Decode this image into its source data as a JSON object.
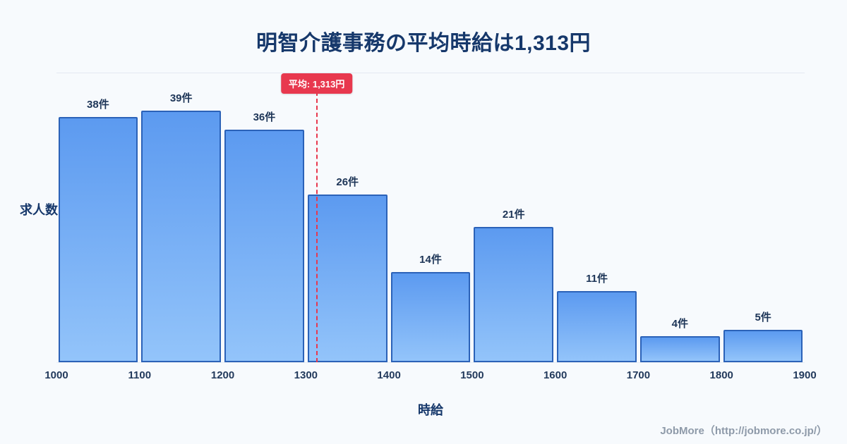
{
  "title": "明智介護事務の平均時給は1,313円",
  "chart_data": {
    "type": "bar",
    "title": "明智介護事務の平均時給は1,313円",
    "xlabel": "時給",
    "ylabel": "求人数",
    "bin_edges": [
      1000,
      1100,
      1200,
      1300,
      1400,
      1500,
      1600,
      1700,
      1800,
      1900
    ],
    "categories": [
      "1000-1100",
      "1100-1200",
      "1200-1300",
      "1300-1400",
      "1400-1500",
      "1500-1600",
      "1600-1700",
      "1700-1800",
      "1800-1900"
    ],
    "values": [
      38,
      39,
      36,
      26,
      14,
      21,
      11,
      4,
      5
    ],
    "value_labels": [
      "38件",
      "39件",
      "36件",
      "26件",
      "14件",
      "21件",
      "11件",
      "4件",
      "5件"
    ],
    "x_ticks": [
      "1000",
      "1100",
      "1200",
      "1300",
      "1400",
      "1500",
      "1600",
      "1700",
      "1800",
      "1900"
    ],
    "ylim": [
      0,
      45
    ],
    "grid": "top-line-only",
    "legend": "none",
    "average_marker": {
      "value": 1313,
      "label": "平均: 1,313円",
      "style": "dashed-vertical-line"
    }
  },
  "footer": {
    "credit": "JobMore（http://jobmore.co.jp/）"
  },
  "colors": {
    "background": "#f7fafd",
    "title_text": "#16386b",
    "bar_gradient_top": "#5c9af0",
    "bar_gradient_bottom": "#93c4fa",
    "bar_border": "#2b62b8",
    "average_red": "#e8384e",
    "badge_text": "#ffffff",
    "tick_text": "#233a5c",
    "credit_text": "#8e9aa9"
  }
}
